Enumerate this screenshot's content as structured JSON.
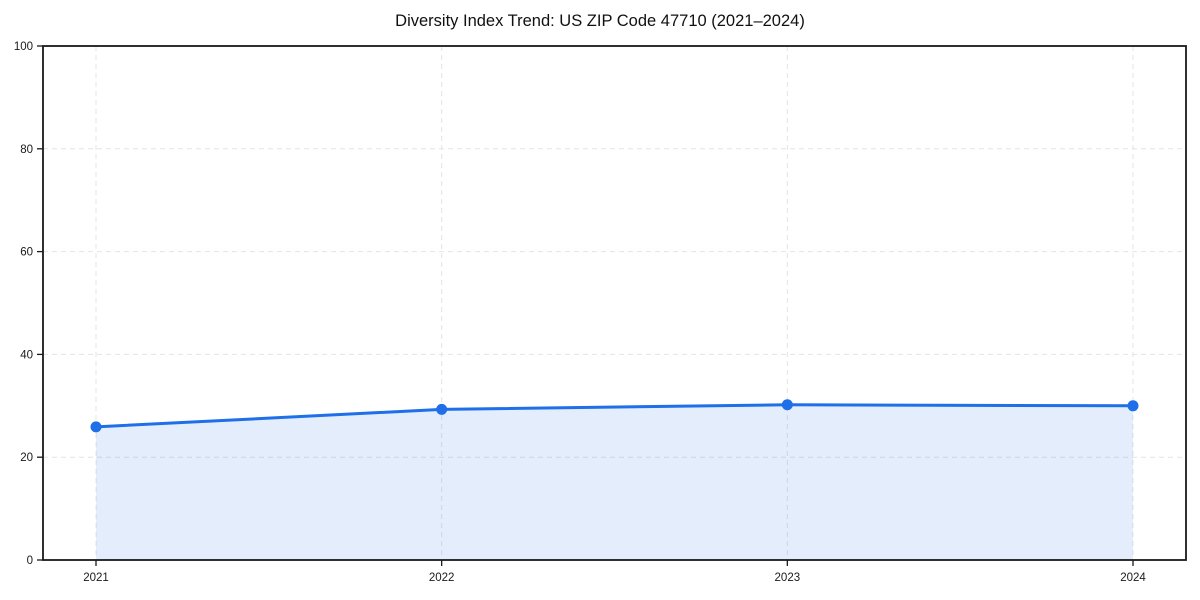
{
  "chart_data": {
    "type": "line",
    "title": "Diversity Index Trend: US ZIP Code 47710 (2021–2024)",
    "categories": [
      "2021",
      "2022",
      "2023",
      "2024"
    ],
    "series": [
      {
        "name": "Diversity Index",
        "values": [
          25.9,
          29.3,
          30.2,
          30.0
        ]
      }
    ],
    "xlabel": "",
    "ylabel": "",
    "ylim": [
      0,
      100
    ],
    "yticks": [
      0,
      20,
      40,
      60,
      80,
      100
    ],
    "grid": true,
    "grid_style": "dashed",
    "legend_position": "none",
    "area_fill": true,
    "marker": "circle",
    "colors": {
      "line": "#1e6fe8",
      "marker": "#1e6fe8",
      "fill": "#1e6fe8",
      "fill_opacity": 0.12,
      "grid": "#e4e4e4",
      "axis": "#1a1a1a",
      "tick_label": "#1a1a1a",
      "background": "#ffffff"
    }
  }
}
